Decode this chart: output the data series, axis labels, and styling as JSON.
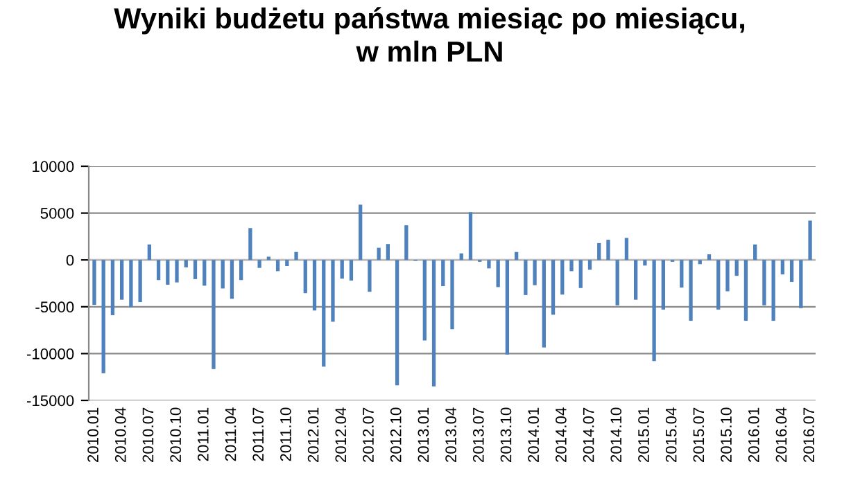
{
  "chart_data": {
    "type": "bar",
    "title": "Wyniki budżetu państwa miesiąc po miesiącu,\nw mln PLN",
    "categories": [
      "2010.01",
      null,
      null,
      "2010.04",
      null,
      null,
      "2010.07",
      null,
      null,
      "2010.10",
      null,
      null,
      "2011.01",
      null,
      null,
      "2011.04",
      null,
      null,
      "2011.07",
      null,
      null,
      "2011.10",
      null,
      null,
      "2012.01",
      null,
      null,
      "2012.04",
      null,
      null,
      "2012.07",
      null,
      null,
      "2012.10",
      null,
      null,
      "2013.01",
      null,
      null,
      "2013.04",
      null,
      null,
      "2013.07",
      null,
      null,
      "2013.10",
      null,
      null,
      "2014.01",
      null,
      null,
      "2014.04",
      null,
      null,
      "2014.07",
      null,
      null,
      "2014.10",
      null,
      null,
      "2015.01",
      null,
      null,
      "2015.04",
      null,
      null,
      "2015.07",
      null,
      null,
      "2015.10",
      null,
      null,
      "2016.01",
      null,
      null,
      "2016.04",
      null,
      null,
      "2016.07"
    ],
    "values": [
      -4800,
      -12100,
      -5900,
      -4250,
      -5050,
      -4500,
      1650,
      -2150,
      -2650,
      -2400,
      -800,
      -2050,
      -2750,
      -11650,
      -3050,
      -4150,
      -2150,
      3400,
      -850,
      350,
      -1200,
      -650,
      850,
      -3550,
      -5400,
      -11400,
      -6600,
      -2000,
      -2200,
      5900,
      -3400,
      1300,
      1700,
      -13400,
      3700,
      -100,
      -8600,
      -13500,
      -2800,
      -7400,
      700,
      5100,
      -200,
      -900,
      -2900,
      -10100,
      850,
      -3750,
      -2700,
      -9350,
      -5850,
      -3700,
      -1200,
      -3000,
      -1050,
      1800,
      2150,
      -4850,
      2350,
      -4250,
      -600,
      -10800,
      -5300,
      -200,
      -2950,
      -6500,
      -450,
      600,
      -5300,
      -3350,
      -1700,
      -6500,
      1650,
      -4850,
      -6500,
      -1550,
      -2350,
      -5150,
      4200
    ],
    "color": "#4f81bd",
    "ylim": [
      -15000,
      10000
    ],
    "yticks": [
      -15000,
      -10000,
      -5000,
      0,
      5000,
      10000
    ],
    "grid": "y",
    "legend": false
  }
}
